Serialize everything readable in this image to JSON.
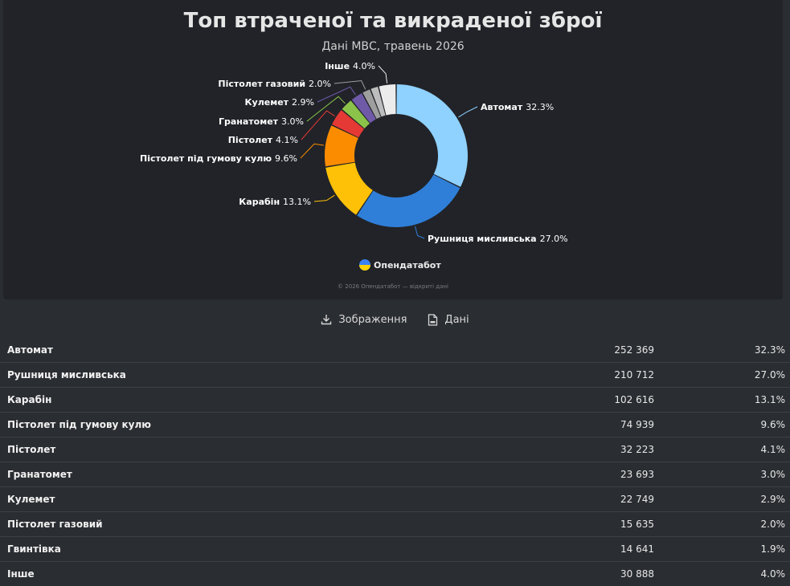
{
  "chart_data": {
    "type": "pie",
    "title": "Топ втраченої та викраденої зброї",
    "subtitle": "Дані МВС, травень 2026",
    "slices": [
      {
        "label": "Автомат",
        "value": 32.3,
        "pct_label": "32.3%",
        "color": "#8fd1ff"
      },
      {
        "label": "Рушниця мисливська",
        "value": 27.0,
        "pct_label": "27.0%",
        "color": "#2f7fd9"
      },
      {
        "label": "Карабін",
        "value": 13.1,
        "pct_label": "13.1%",
        "color": "#ffc107"
      },
      {
        "label": "Пістолет під гумову кулю",
        "value": 9.6,
        "pct_label": "9.6%",
        "color": "#fb8c00"
      },
      {
        "label": "Пістолет",
        "value": 4.1,
        "pct_label": "4.1%",
        "color": "#e53935"
      },
      {
        "label": "Гранатомет",
        "value": 3.0,
        "pct_label": "3.0%",
        "color": "#8bc34a"
      },
      {
        "label": "Кулемет",
        "value": 2.9,
        "pct_label": "2.9%",
        "color": "#6f5aa8"
      },
      {
        "label": "Пістолет газовий",
        "value": 2.0,
        "pct_label": "2.0%",
        "color": "#9e9e9e"
      },
      {
        "label": "Гвинтівка",
        "value": 1.9,
        "pct_label": "",
        "color": "#bdbdbd"
      },
      {
        "label": "Інше",
        "value": 4.0,
        "pct_label": "4.0%",
        "color": "#ececec"
      }
    ]
  },
  "brand": {
    "name": "Опендатабот",
    "footer": "© 2026 Опендатабот — відкриті дані"
  },
  "toolbar": {
    "image_label": "Зображення",
    "data_label": "Дані"
  },
  "table": {
    "rows": [
      {
        "name": "Автомат",
        "count": "252 369",
        "pct": "32.3%"
      },
      {
        "name": "Рушниця мисливська",
        "count": "210 712",
        "pct": "27.0%"
      },
      {
        "name": "Карабін",
        "count": "102 616",
        "pct": "13.1%"
      },
      {
        "name": "Пістолет під гумову кулю",
        "count": "74 939",
        "pct": "9.6%"
      },
      {
        "name": "Пістолет",
        "count": "32 223",
        "pct": "4.1%"
      },
      {
        "name": "Гранатомет",
        "count": "23 693",
        "pct": "3.0%"
      },
      {
        "name": "Кулемет",
        "count": "22 749",
        "pct": "2.9%"
      },
      {
        "name": "Пістолет газовий",
        "count": "15 635",
        "pct": "2.0%"
      },
      {
        "name": "Гвинтівка",
        "count": "14 641",
        "pct": "1.9%"
      },
      {
        "name": "Інше",
        "count": "30 888",
        "pct": "4.0%"
      }
    ]
  }
}
